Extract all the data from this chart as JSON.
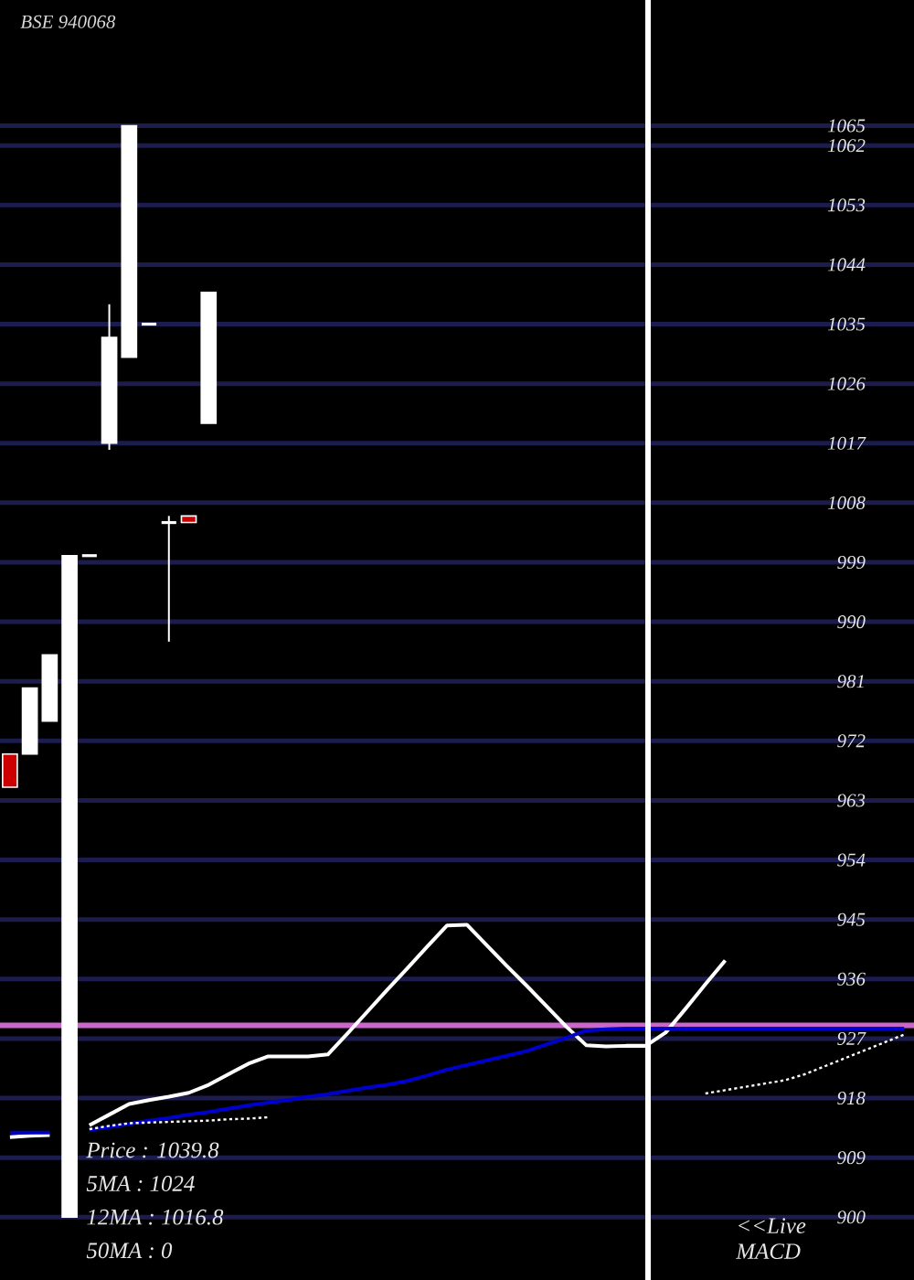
{
  "chart_data": {
    "type": "candlestick",
    "title": "BSE 940068",
    "categories": [
      null,
      null,
      null,
      null,
      null,
      null,
      null,
      null,
      null,
      null,
      null,
      null,
      null,
      null,
      null,
      null,
      null,
      null,
      null,
      null,
      null,
      null,
      null,
      null,
      null,
      null,
      null,
      null,
      null,
      null,
      null,
      null,
      null,
      null,
      null,
      null,
      null,
      null,
      null,
      null,
      null,
      null,
      null,
      null,
      null,
      null
    ],
    "ohlc": [
      [
        970,
        970,
        965,
        965
      ],
      [
        970,
        980,
        970,
        980
      ],
      [
        975,
        985,
        975,
        985
      ],
      [
        900,
        1000,
        900,
        1000
      ],
      [
        1000,
        1000,
        1000,
        1000
      ],
      [
        1017,
        1038,
        1016,
        1033
      ],
      [
        1030,
        1065,
        1030,
        1065
      ],
      [
        1035,
        1035,
        1035,
        1035
      ],
      [
        1005,
        1006,
        987,
        1005
      ],
      [
        1006,
        1006,
        1005,
        1005
      ],
      [
        1020,
        1039.8,
        1020,
        1039.8
      ],
      null,
      null,
      null,
      null,
      null,
      null,
      null,
      null,
      null,
      null,
      null,
      null,
      null,
      null,
      null,
      null,
      null,
      null,
      null,
      null,
      null,
      null,
      null,
      null,
      null,
      null,
      null,
      null,
      null,
      null,
      null,
      null,
      null,
      null,
      null
    ],
    "colors": [
      "#cc0000",
      "#ffffff",
      "#ffffff",
      "#ffffff",
      "#ffffff",
      "#ffffff",
      "#ffffff",
      "#ffffff",
      "#ffffff",
      "#cc0000",
      "#ffffff",
      null,
      null,
      null,
      null,
      null,
      null,
      null,
      null,
      null,
      null,
      null,
      null,
      null,
      null,
      null,
      null,
      null,
      null,
      null,
      null,
      null,
      null,
      null,
      null,
      null,
      null,
      null,
      null,
      null,
      null,
      null,
      null,
      null,
      null,
      null
    ],
    "series": [
      {
        "type": "line",
        "color": "#ffffff",
        "line_style": "solid",
        "values": [
          912.1,
          912.3,
          912.4,
          null,
          913.9,
          915.5,
          917.1,
          917.7,
          918.2,
          918.8,
          920.0,
          921.6,
          923.2,
          924.3,
          924.3,
          924.3,
          924.6,
          927.8,
          931.1,
          934.4,
          937.6,
          940.9,
          944.1,
          944.2,
          941.1,
          938.0,
          935.0,
          931.9,
          928.8,
          926.0,
          925.8,
          925.9,
          925.9,
          927.9,
          931.5,
          935.2,
          938.8,
          null,
          null,
          null,
          null,
          null,
          null,
          null,
          null,
          null
        ]
      },
      {
        "type": "line",
        "color": "#0000cc",
        "line_style": "solid",
        "values": [
          912.8,
          912.8,
          912.8,
          null,
          913.2,
          913.6,
          914.1,
          914.6,
          915.0,
          915.5,
          915.9,
          916.4,
          916.9,
          917.3,
          917.7,
          918.2,
          918.6,
          919.1,
          919.6,
          920.0,
          920.6,
          921.4,
          922.3,
          923.0,
          923.7,
          924.4,
          925.1,
          926.1,
          927.1,
          928.2,
          928.4,
          928.5,
          928.5,
          928.5,
          928.5,
          928.5,
          928.5,
          928.5,
          928.5,
          928.5,
          928.5,
          928.5,
          928.5,
          928.5,
          928.5,
          928.5
        ]
      },
      {
        "type": "line",
        "color": "#ffffff",
        "line_style": "dotted",
        "values": [
          null,
          null,
          null,
          null,
          913.3,
          913.8,
          914.2,
          914.3,
          914.4,
          914.5,
          914.6,
          914.8,
          914.9,
          915.1,
          null,
          null,
          null,
          null,
          null,
          null,
          null,
          null,
          null,
          null,
          null,
          null,
          null,
          null,
          null,
          null,
          null,
          null,
          null,
          null,
          null,
          918.7,
          919.2,
          919.7,
          920.2,
          920.7,
          921.6,
          922.8,
          924.0,
          925.2,
          926.4,
          927.6
        ]
      }
    ],
    "ylim": [
      890.5,
      1084
    ],
    "yticks": [
      900,
      909,
      918,
      927,
      936,
      945,
      954,
      963,
      972,
      981,
      990,
      999,
      1008,
      1017,
      1026,
      1035,
      1044,
      1053,
      1062,
      1065
    ],
    "grid": "y",
    "tick_labels": "y",
    "ref_lines": [
      {
        "axis": "y",
        "value": 929,
        "color": "#cc66cc"
      }
    ],
    "annotations": [
      "Price : 1039.8",
      "5MA : 1024",
      "12MA : 1016.8",
      "50MA : 0",
      "<<Live MACD"
    ]
  }
}
